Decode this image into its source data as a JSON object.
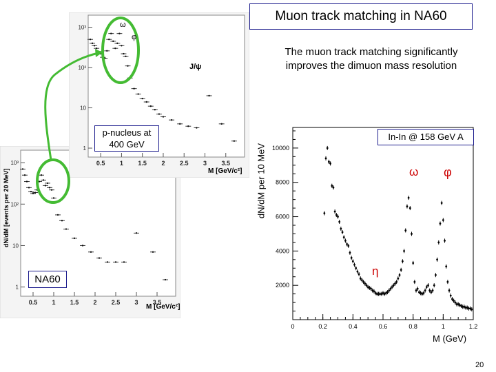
{
  "slide": {
    "title": "Muon track matching in NA60",
    "subtitle": "The muon track matching significantly improves the dimuon mass resolution",
    "page_number": "20",
    "green": "#44bb33",
    "border": "#1a1a8c"
  },
  "chart_data": [
    {
      "type": "scatter",
      "name": "pA",
      "label": "p-nucleus at 400 GeV",
      "xlabel": "M [GeV/c²]",
      "ylabel": "",
      "yscale": "log",
      "xticks": [
        "0.5",
        "1",
        "1.5",
        "2",
        "2.5",
        "3",
        "3.5"
      ],
      "yticks": [
        "1",
        "10",
        "10²",
        "10³"
      ],
      "annotations": [
        "ω",
        "φ",
        "J/ψ"
      ],
      "x": [
        0.25,
        0.3,
        0.35,
        0.4,
        0.45,
        0.5,
        0.55,
        0.6,
        0.65,
        0.7,
        0.75,
        0.8,
        0.85,
        0.9,
        0.95,
        1.0,
        1.05,
        1.1,
        1.15,
        1.2,
        1.3,
        1.4,
        1.5,
        1.6,
        1.7,
        1.8,
        1.9,
        2.0,
        2.2,
        2.4,
        2.6,
        2.8,
        3.1,
        3.4,
        3.7
      ],
      "y": [
        500,
        400,
        350,
        300,
        250,
        220,
        180,
        170,
        260,
        500,
        700,
        450,
        300,
        400,
        700,
        350,
        220,
        190,
        110,
        55,
        30,
        22,
        17,
        14,
        11,
        9,
        7,
        6,
        5,
        4,
        3.5,
        3.2,
        20,
        4,
        1.5
      ]
    },
    {
      "type": "scatter",
      "name": "InIn_left",
      "label": "NA60",
      "xlabel": "M [GeV/c²]",
      "ylabel": "dN/dM [events per 20 MeV]",
      "yscale": "log",
      "xticks": [
        "0.5",
        "1",
        "1.5",
        "2",
        "2.5",
        "3",
        "3.5"
      ],
      "yticks": [
        "1",
        "10",
        "10²",
        "10³"
      ],
      "x": [
        0.25,
        0.3,
        0.35,
        0.4,
        0.45,
        0.5,
        0.55,
        0.6,
        0.65,
        0.7,
        0.75,
        0.8,
        0.85,
        0.9,
        0.95,
        1.0,
        1.05,
        1.1,
        1.2,
        1.3,
        1.5,
        1.7,
        1.9,
        2.1,
        2.3,
        2.5,
        2.7,
        3.0,
        3.4,
        3.7
      ],
      "y": [
        700,
        500,
        350,
        250,
        200,
        180,
        190,
        220,
        350,
        500,
        380,
        280,
        320,
        250,
        220,
        140,
        110,
        55,
        40,
        25,
        15,
        10,
        7,
        5,
        4,
        4,
        4,
        20,
        7,
        1.5
      ]
    },
    {
      "type": "scatter",
      "name": "InIn_right",
      "label": "In-In @ 158 GeV A",
      "xlabel": "M (GeV)",
      "ylabel": "dN/dM per 10 MeV",
      "xlim": [
        0,
        1.2
      ],
      "ylim": [
        0,
        11200
      ],
      "xticks": [
        "0",
        "0.2",
        "0.4",
        "0.6",
        "0.8",
        "1",
        "1.2"
      ],
      "yticks": [
        "2000",
        "4000",
        "6000",
        "8000",
        "10000"
      ],
      "annotations": [
        "ω",
        "φ",
        "η"
      ],
      "x": [
        0.21,
        0.22,
        0.23,
        0.24,
        0.25,
        0.26,
        0.27,
        0.28,
        0.29,
        0.3,
        0.31,
        0.32,
        0.33,
        0.34,
        0.35,
        0.36,
        0.37,
        0.38,
        0.39,
        0.4,
        0.41,
        0.42,
        0.43,
        0.44,
        0.45,
        0.46,
        0.47,
        0.48,
        0.49,
        0.5,
        0.51,
        0.52,
        0.53,
        0.54,
        0.55,
        0.56,
        0.57,
        0.58,
        0.59,
        0.6,
        0.61,
        0.62,
        0.63,
        0.64,
        0.65,
        0.66,
        0.67,
        0.68,
        0.69,
        0.7,
        0.71,
        0.72,
        0.73,
        0.74,
        0.75,
        0.76,
        0.77,
        0.78,
        0.79,
        0.8,
        0.81,
        0.82,
        0.83,
        0.84,
        0.85,
        0.86,
        0.87,
        0.88,
        0.89,
        0.9,
        0.91,
        0.92,
        0.93,
        0.94,
        0.95,
        0.96,
        0.97,
        0.98,
        0.99,
        1.0,
        1.01,
        1.02,
        1.03,
        1.04,
        1.05,
        1.06,
        1.07,
        1.08,
        1.09,
        1.1,
        1.11,
        1.12,
        1.13,
        1.14,
        1.15,
        1.16,
        1.17,
        1.18,
        1.19
      ],
      "y": [
        6200,
        9400,
        10000,
        9200,
        9100,
        7800,
        7700,
        6300,
        6100,
        6000,
        5700,
        5300,
        5100,
        4800,
        4600,
        4400,
        4300,
        3900,
        3600,
        3400,
        3200,
        3000,
        2800,
        2650,
        2400,
        2300,
        2200,
        2100,
        2000,
        1900,
        1850,
        1800,
        1700,
        1650,
        1550,
        1500,
        1500,
        1500,
        1500,
        1550,
        1500,
        1550,
        1600,
        1700,
        1800,
        1900,
        2000,
        2100,
        2200,
        2400,
        2600,
        2900,
        3400,
        4000,
        5200,
        6600,
        7100,
        6500,
        5000,
        3300,
        2200,
        1700,
        1800,
        1600,
        1550,
        1500,
        1550,
        1700,
        1900,
        2000,
        1700,
        1600,
        1700,
        2000,
        2600,
        3500,
        4500,
        5600,
        6800,
        5800,
        4600,
        3100,
        2200,
        1700,
        1400,
        1200,
        1100,
        1000,
        900,
        900,
        850,
        800,
        750,
        750,
        700,
        700,
        650,
        650,
        600
      ]
    }
  ]
}
